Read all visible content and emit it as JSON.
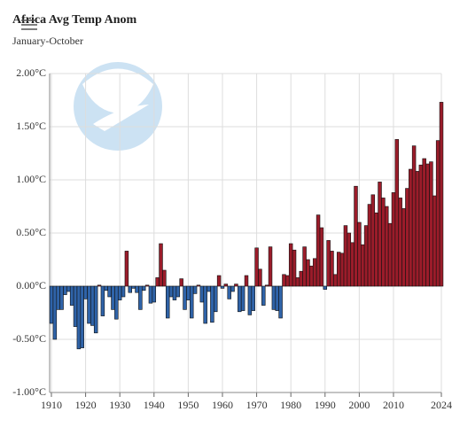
{
  "chart_data": {
    "type": "bar",
    "title": "Africa Avg Temp Anom",
    "subtitle": "January-October",
    "watermark": "NOAA",
    "x": [
      1910,
      1911,
      1912,
      1913,
      1914,
      1915,
      1916,
      1917,
      1918,
      1919,
      1920,
      1921,
      1922,
      1923,
      1924,
      1925,
      1926,
      1927,
      1928,
      1929,
      1930,
      1931,
      1932,
      1933,
      1934,
      1935,
      1936,
      1937,
      1938,
      1939,
      1940,
      1941,
      1942,
      1943,
      1944,
      1945,
      1946,
      1947,
      1948,
      1949,
      1950,
      1951,
      1952,
      1953,
      1954,
      1955,
      1956,
      1957,
      1958,
      1959,
      1960,
      1961,
      1962,
      1963,
      1964,
      1965,
      1966,
      1967,
      1968,
      1969,
      1970,
      1971,
      1972,
      1973,
      1974,
      1975,
      1976,
      1977,
      1978,
      1979,
      1980,
      1981,
      1982,
      1983,
      1984,
      1985,
      1986,
      1987,
      1988,
      1989,
      1990,
      1991,
      1992,
      1993,
      1994,
      1995,
      1996,
      1997,
      1998,
      1999,
      2000,
      2001,
      2002,
      2003,
      2004,
      2005,
      2006,
      2007,
      2008,
      2009,
      2010,
      2011,
      2012,
      2013,
      2014,
      2015,
      2016,
      2017,
      2018,
      2019,
      2020,
      2021,
      2022,
      2023,
      2024
    ],
    "values": [
      -0.35,
      -0.5,
      -0.22,
      -0.22,
      -0.08,
      -0.05,
      -0.18,
      -0.38,
      -0.59,
      -0.58,
      -0.12,
      -0.35,
      -0.37,
      -0.44,
      0.01,
      -0.28,
      -0.04,
      -0.1,
      -0.22,
      -0.31,
      -0.13,
      -0.1,
      0.33,
      -0.06,
      -0.02,
      -0.06,
      -0.22,
      -0.04,
      0.01,
      -0.16,
      -0.15,
      0.08,
      0.4,
      0.15,
      -0.3,
      -0.1,
      -0.13,
      -0.1,
      0.07,
      -0.22,
      -0.13,
      -0.3,
      -0.07,
      0.01,
      -0.15,
      -0.35,
      -0.05,
      -0.34,
      -0.24,
      0.1,
      -0.02,
      0.02,
      -0.12,
      -0.05,
      0.02,
      -0.24,
      -0.23,
      0.1,
      -0.27,
      -0.23,
      0.36,
      0.16,
      -0.18,
      0.01,
      0.37,
      -0.22,
      -0.23,
      -0.3,
      0.11,
      0.1,
      0.4,
      0.34,
      0.08,
      0.14,
      0.37,
      0.25,
      0.19,
      0.26,
      0.67,
      0.55,
      -0.03,
      0.43,
      0.33,
      0.11,
      0.32,
      0.31,
      0.57,
      0.5,
      0.41,
      0.94,
      0.6,
      0.39,
      0.57,
      0.77,
      0.86,
      0.69,
      0.98,
      0.83,
      0.75,
      0.59,
      0.88,
      1.38,
      0.83,
      0.73,
      0.92,
      1.1,
      1.32,
      1.08,
      1.14,
      1.2,
      1.15,
      1.17,
      0.85,
      1.37,
      1.73
    ],
    "positive_color": "#9b1c2a",
    "negative_color": "#2f63a8",
    "xlim": [
      1910,
      2024
    ],
    "xticks": [
      1910,
      1920,
      1930,
      1940,
      1950,
      1960,
      1970,
      1980,
      1990,
      2000,
      2010,
      2024
    ],
    "ylim": [
      -1,
      2
    ],
    "yticks": [
      {
        "value": -1,
        "label": "-1.00°C"
      },
      {
        "value": -0.5,
        "label": "-0.50°C"
      },
      {
        "value": 0,
        "label": "0.00°C"
      },
      {
        "value": 0.5,
        "label": "0.50°C"
      },
      {
        "value": 1,
        "label": "1.00°C"
      },
      {
        "value": 1.5,
        "label": "1.50°C"
      },
      {
        "value": 2,
        "label": "2.00°C"
      }
    ],
    "grid": true
  }
}
